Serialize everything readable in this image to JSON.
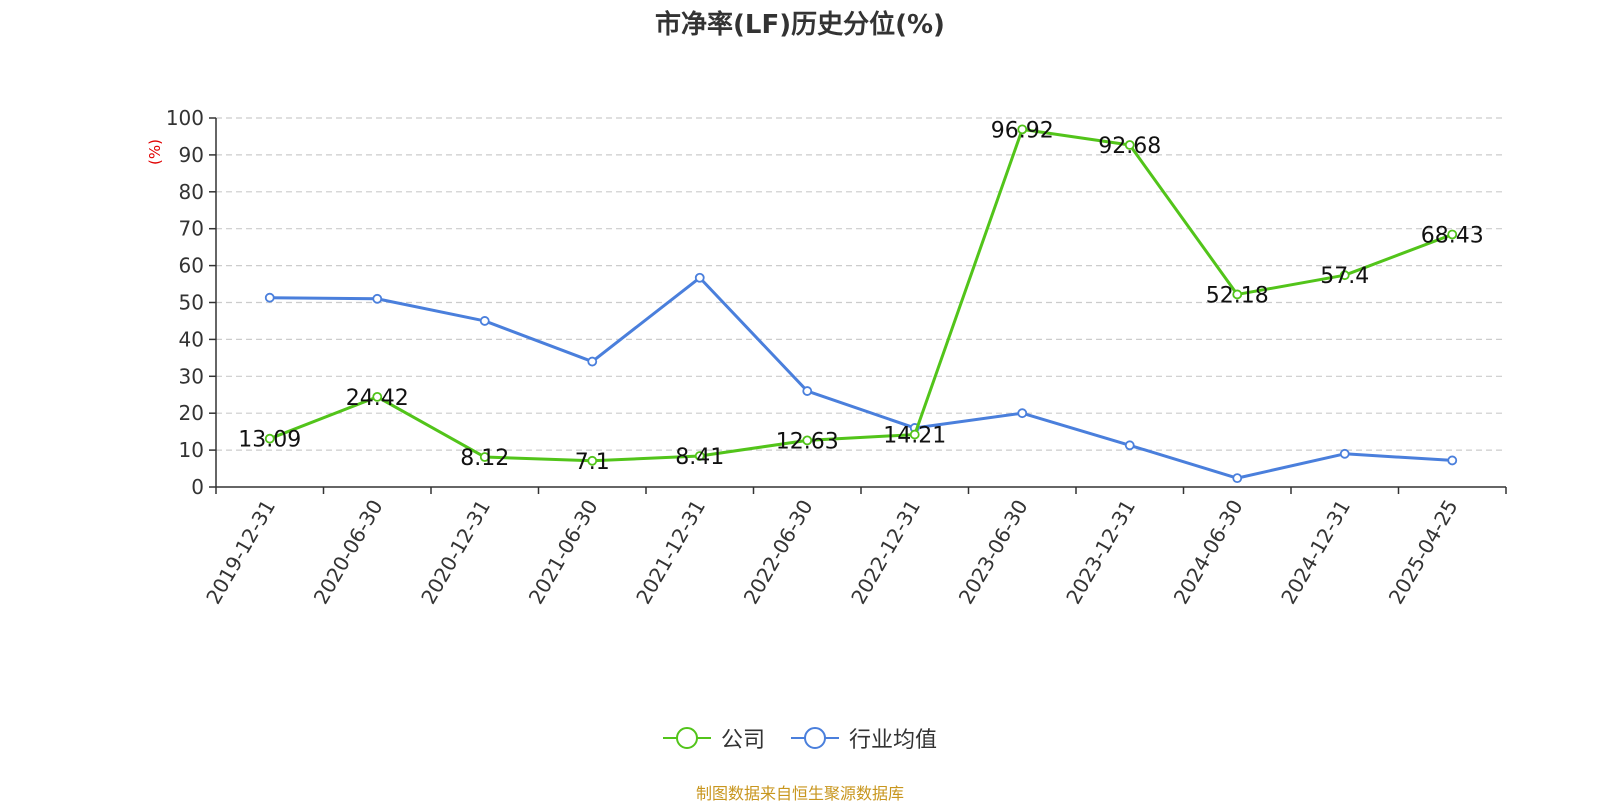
{
  "chart_data": {
    "type": "line",
    "title": "市净率(LF)历史分位(%)",
    "ylabel": "(%)",
    "ylim": [
      0,
      100
    ],
    "yticks": [
      0,
      10,
      20,
      30,
      40,
      50,
      60,
      70,
      80,
      90,
      100
    ],
    "grid": true,
    "legend_position": "bottom",
    "categories": [
      "2019-12-31",
      "2020-06-30",
      "2020-12-31",
      "2021-06-30",
      "2021-12-31",
      "2022-06-30",
      "2022-12-31",
      "2023-06-30",
      "2023-12-31",
      "2024-06-30",
      "2024-12-31",
      "2025-04-25"
    ],
    "series": [
      {
        "name": "公司",
        "color": "#52c41a",
        "values": [
          13.09,
          24.42,
          8.12,
          7.1,
          8.41,
          12.63,
          14.21,
          96.92,
          92.68,
          52.18,
          57.4,
          68.43
        ],
        "labels": [
          "13.09",
          "24.42",
          "8.12",
          "7.1",
          "8.41",
          "12.63",
          "14.21",
          "96.92",
          "92.68",
          "52.18",
          "57.4",
          "68.43"
        ]
      },
      {
        "name": "行业均值",
        "color": "#4a7fdc",
        "values": [
          51.3,
          51.0,
          45.0,
          34.0,
          56.7,
          26.0,
          16.0,
          20.0,
          11.3,
          2.4,
          9.0,
          7.2
        ]
      }
    ],
    "source": "制图数据来自恒生聚源数据库"
  }
}
